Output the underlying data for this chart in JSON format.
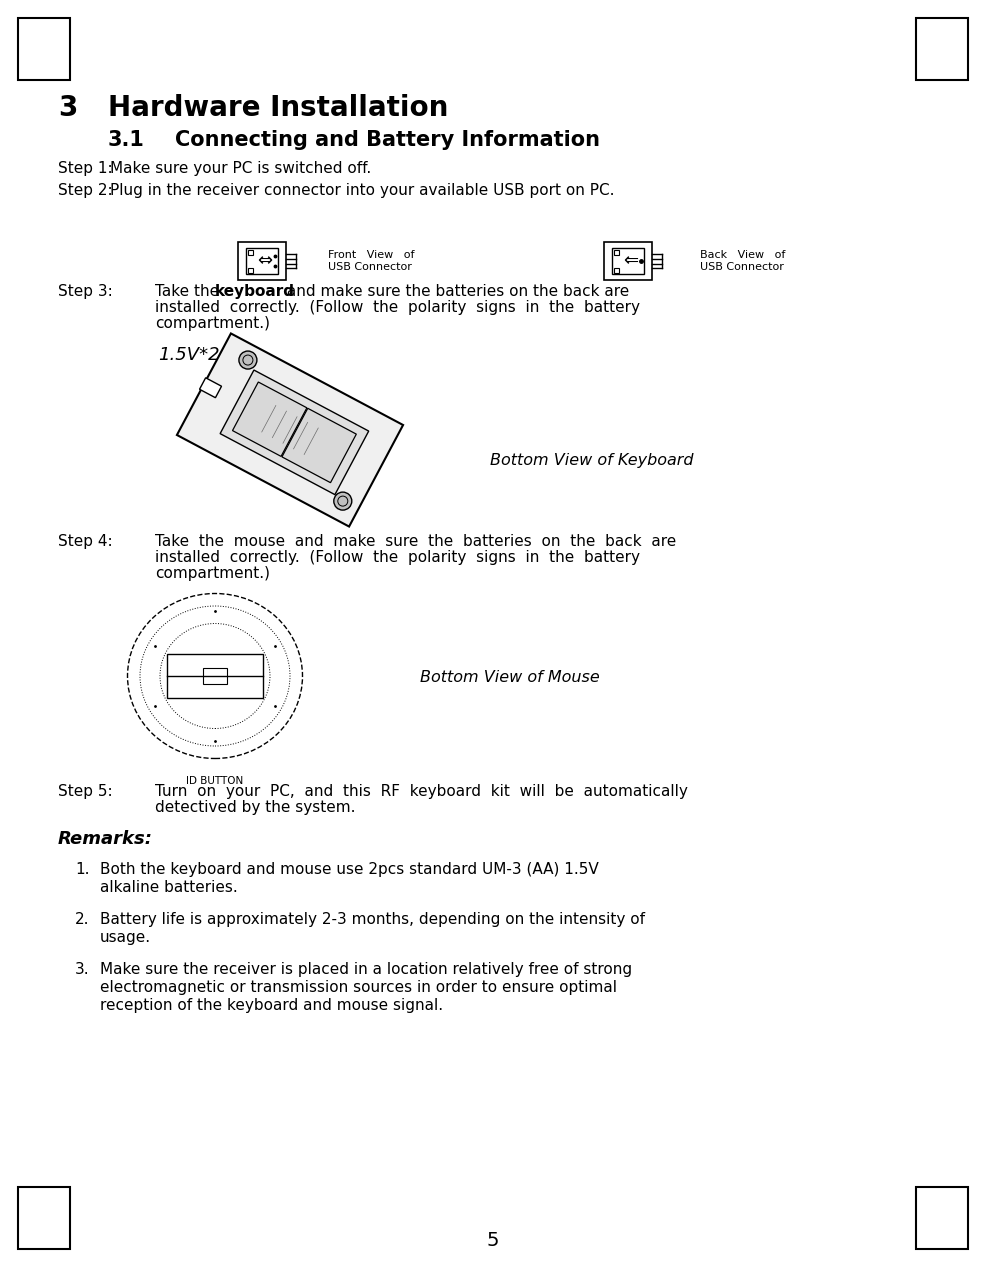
{
  "bg_color": "#ffffff",
  "page_number": "5",
  "title_number": "3",
  "title_text": "Hardware Installation",
  "subtitle_number": "3.1",
  "subtitle_text": "Connecting and Battery Information",
  "step1_label": "Step 1:",
  "step1_text": "Make sure your PC is switched off.",
  "step2_label": "Step 2:",
  "step2_text": "Plug in the receiver connector into your available USB port on PC.",
  "step3_label": "Step 3:",
  "step4_label": "Step 4:",
  "step5_label": "Step 5:",
  "step5_line1": "Turn  on  your  PC,  and  this  RF  keyboard  kit  will  be  automatically",
  "step5_line2": "detectived by the system.",
  "remarks_title": "Remarks:",
  "remark1_num": "1.",
  "remark1_line1": "Both the keyboard and mouse use 2pcs standard UM-3 (AA) 1.5V",
  "remark1_line2": "alkaline batteries.",
  "remark2_num": "2.",
  "remark2_line1": "Battery life is approximately 2-3 months, depending on the intensity of",
  "remark2_line2": "usage.",
  "remark3_num": "3.",
  "remark3_line1": "Make sure the receiver is placed in a location relatively free of strong",
  "remark3_line2": "electromagnetic or transmission sources in order to ensure optimal",
  "remark3_line3": "reception of the keyboard and mouse signal.",
  "front_usb_line1": "Front   View   of",
  "front_usb_line2": "USB Connector",
  "back_usb_line1": "Back   View   of",
  "back_usb_line2": "USB Connector",
  "keyboard_label": "Bottom View of Keyboard",
  "mouse_label": "Bottom View of Mouse",
  "battery_label": "1.5V*2",
  "id_button_label": "ID BUTTON",
  "step3_part1": "Take the ",
  "step3_bold": "keyboard",
  "step3_part2": " and make sure the batteries on the back are",
  "step3_line2": "installed  correctly.  (Follow  the  polarity  signs  in  the  battery",
  "step3_line3": "compartment.)",
  "step4_line1": "Take  the  mouse  and  make  sure  the  batteries  on  the  back  are",
  "step4_line2": "installed  correctly.  (Follow  the  polarity  signs  in  the  battery",
  "step4_line3": "compartment.)"
}
